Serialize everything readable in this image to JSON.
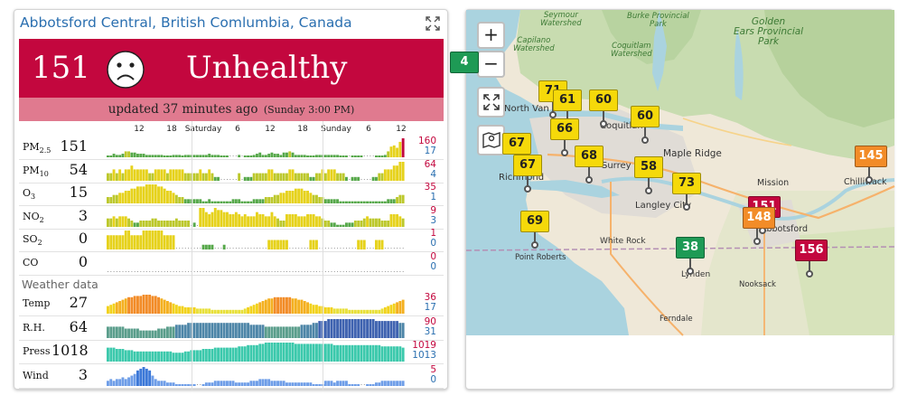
{
  "station": {
    "title": "Abbotsford Central, British Comlumbia, Canada",
    "aqi": "151",
    "level": "Unhealthy",
    "updated": "updated 37 minutes ago",
    "updated_day": "(Sunday 3:00 PM)",
    "banner_color": "#c3073e"
  },
  "time_axis": [
    "12",
    "18",
    "Saturday",
    "6",
    "12",
    "18",
    "Sunday",
    "6",
    "12"
  ],
  "pollutants": [
    {
      "id": "pm25",
      "label": "PM",
      "sub": "2.5",
      "value": "151",
      "max": "160",
      "min": "17",
      "bars": [
        1,
        1,
        3,
        2,
        2,
        3,
        5,
        5,
        4,
        4,
        3,
        3,
        3,
        2,
        2,
        2,
        2,
        2,
        2,
        1,
        1,
        1,
        2,
        2,
        2,
        1,
        2,
        2,
        2,
        2,
        2,
        2,
        2,
        2,
        3,
        2,
        2,
        2,
        1,
        1,
        1,
        0,
        0,
        0,
        2,
        0,
        1,
        1,
        1,
        2,
        3,
        4,
        2,
        2,
        3,
        4,
        3,
        3,
        2,
        4,
        4,
        5,
        4,
        2,
        2,
        2,
        2,
        1,
        1,
        1,
        2,
        2,
        2,
        2,
        2,
        2,
        2,
        2,
        1,
        1,
        1,
        0,
        1,
        1,
        1,
        1,
        0,
        0,
        0,
        0,
        1,
        1,
        1,
        2,
        5,
        9,
        10,
        8,
        13,
        16
      ]
    },
    {
      "id": "pm10",
      "label": "PM",
      "sub": "10",
      "value": "54",
      "max": "64",
      "min": "4",
      "bars": [
        2,
        2,
        3,
        2,
        3,
        2,
        3,
        3,
        4,
        3,
        3,
        3,
        3,
        3,
        2,
        2,
        3,
        3,
        3,
        3,
        2,
        3,
        3,
        3,
        3,
        3,
        2,
        2,
        2,
        2,
        2,
        3,
        2,
        2,
        3,
        2,
        1,
        1,
        0,
        0,
        0,
        0,
        0,
        0,
        2,
        0,
        1,
        1,
        1,
        2,
        2,
        2,
        2,
        2,
        3,
        3,
        2,
        2,
        2,
        2,
        2,
        3,
        3,
        2,
        2,
        2,
        2,
        2,
        1,
        1,
        2,
        2,
        3,
        2,
        3,
        3,
        3,
        2,
        2,
        2,
        1,
        0,
        1,
        1,
        1,
        0,
        0,
        0,
        0,
        1,
        1,
        2,
        2,
        3,
        3,
        3,
        4,
        4,
        5,
        5
      ]
    },
    {
      "id": "o3",
      "label": "O",
      "sub": "3",
      "value": "15",
      "max": "35",
      "min": "1",
      "bars": [
        3,
        3,
        4,
        4,
        5,
        5,
        6,
        6,
        7,
        7,
        8,
        8,
        8,
        9,
        9,
        9,
        9,
        8,
        8,
        7,
        6,
        6,
        5,
        4,
        3,
        3,
        2,
        2,
        2,
        2,
        2,
        2,
        1,
        1,
        2,
        1,
        1,
        1,
        1,
        1,
        1,
        1,
        2,
        2,
        2,
        1,
        1,
        1,
        1,
        2,
        2,
        2,
        2,
        3,
        3,
        3,
        4,
        4,
        5,
        5,
        6,
        6,
        6,
        7,
        7,
        7,
        6,
        6,
        5,
        4,
        4,
        3,
        3,
        2,
        2,
        2,
        2,
        2,
        1,
        1,
        1,
        1,
        1,
        1,
        1,
        1,
        1,
        1,
        1,
        1,
        1,
        1,
        1,
        1,
        2,
        2,
        2,
        3,
        4,
        4
      ]
    },
    {
      "id": "no2",
      "label": "NO",
      "sub": "2",
      "value": "3",
      "max": "9",
      "min": "3",
      "bars": [
        4,
        4,
        5,
        4,
        5,
        5,
        5,
        4,
        3,
        2,
        2,
        3,
        3,
        3,
        3,
        4,
        4,
        3,
        3,
        3,
        3,
        3,
        3,
        4,
        3,
        3,
        3,
        3,
        0,
        2,
        0,
        9,
        9,
        7,
        6,
        7,
        9,
        8,
        8,
        7,
        7,
        6,
        6,
        7,
        6,
        5,
        6,
        5,
        5,
        5,
        7,
        6,
        6,
        5,
        5,
        7,
        5,
        4,
        3,
        3,
        6,
        6,
        6,
        6,
        5,
        5,
        5,
        6,
        6,
        6,
        5,
        5,
        4,
        3,
        3,
        2,
        2,
        1,
        1,
        1,
        2,
        2,
        2,
        3,
        3,
        3,
        4,
        5,
        4,
        4,
        4,
        4,
        3,
        3,
        3,
        6,
        6,
        6,
        5,
        4
      ]
    },
    {
      "id": "so2",
      "label": "SO",
      "sub": "2",
      "value": "0",
      "max": "1",
      "min": "0",
      "bars": [
        3,
        3,
        3,
        3,
        3,
        3,
        4,
        4,
        3,
        3,
        3,
        3,
        4,
        4,
        4,
        4,
        4,
        4,
        4,
        3,
        3,
        3,
        3,
        0,
        0,
        0,
        0,
        0,
        0,
        0,
        0,
        0,
        1,
        1,
        1,
        1,
        0,
        0,
        0,
        1,
        0,
        0,
        0,
        0,
        0,
        0,
        0,
        0,
        0,
        0,
        0,
        0,
        0,
        0,
        2,
        2,
        2,
        2,
        2,
        2,
        2,
        0,
        0,
        0,
        0,
        0,
        0,
        0,
        2,
        2,
        2,
        0,
        0,
        0,
        0,
        0,
        0,
        0,
        0,
        0,
        0,
        0,
        0,
        0,
        2,
        2,
        2,
        0,
        0,
        0,
        2,
        2,
        2,
        0,
        0,
        0,
        0,
        0,
        0,
        0
      ]
    },
    {
      "id": "co",
      "label": "CO",
      "sub": "",
      "value": "0",
      "max": "0",
      "min": "0",
      "bars": [
        0,
        0,
        0,
        0,
        0,
        0,
        0,
        0,
        0,
        0,
        0,
        0,
        0,
        0,
        0,
        0,
        0,
        0,
        0,
        0,
        0,
        0,
        0,
        0,
        0,
        0,
        0,
        0,
        0,
        0,
        0,
        0,
        0,
        0,
        0,
        0,
        0,
        0,
        0,
        0,
        0,
        0,
        0,
        0,
        0,
        0,
        0,
        0,
        0,
        0,
        0,
        0,
        0,
        0,
        0,
        0,
        0,
        0,
        0,
        0,
        0,
        0,
        0,
        0,
        0,
        0,
        0,
        0,
        0,
        0,
        0,
        0,
        0,
        0,
        0,
        0,
        0,
        0,
        0,
        0,
        0,
        0,
        0,
        0,
        0,
        0,
        0,
        0,
        0,
        0,
        0,
        0,
        0,
        0,
        0,
        0,
        0,
        0,
        0,
        0
      ]
    }
  ],
  "weather_heading": "Weather data",
  "weather": [
    {
      "id": "temp",
      "label": "Temp",
      "value": "27",
      "max": "36",
      "min": "17",
      "palette": "temp",
      "bars": [
        6,
        7,
        8,
        9,
        10,
        11,
        12,
        13,
        13,
        14,
        14,
        14,
        15,
        15,
        15,
        14,
        14,
        13,
        12,
        11,
        10,
        9,
        8,
        7,
        6,
        6,
        5,
        5,
        5,
        5,
        4,
        4,
        4,
        4,
        4,
        3,
        3,
        3,
        3,
        3,
        3,
        3,
        3,
        3,
        3,
        3,
        4,
        5,
        6,
        7,
        8,
        9,
        10,
        11,
        12,
        12,
        13,
        13,
        13,
        13,
        13,
        13,
        12,
        12,
        11,
        11,
        10,
        9,
        8,
        7,
        7,
        6,
        6,
        5,
        5,
        5,
        4,
        4,
        4,
        4,
        4,
        3,
        3,
        3,
        3,
        3,
        3,
        3,
        3,
        3,
        3,
        3,
        4,
        5,
        6,
        7,
        8,
        9,
        10,
        11
      ]
    },
    {
      "id": "rh",
      "label": "R.H.",
      "value": "64",
      "max": "90",
      "min": "31",
      "palette": "rh",
      "bars": [
        6,
        6,
        6,
        6,
        6,
        6,
        5,
        5,
        5,
        5,
        5,
        4,
        4,
        4,
        4,
        4,
        4,
        5,
        5,
        5,
        6,
        6,
        6,
        7,
        7,
        7,
        7,
        8,
        8,
        8,
        8,
        8,
        8,
        8,
        8,
        8,
        8,
        8,
        8,
        8,
        8,
        8,
        8,
        8,
        8,
        8,
        8,
        8,
        7,
        7,
        7,
        7,
        7,
        6,
        6,
        6,
        6,
        6,
        6,
        6,
        6,
        6,
        6,
        6,
        6,
        7,
        7,
        7,
        7,
        8,
        8,
        9,
        9,
        9,
        10,
        10,
        10,
        10,
        10,
        10,
        10,
        10,
        10,
        10,
        10,
        10,
        10,
        10,
        10,
        10,
        9,
        9,
        9,
        9,
        9,
        9,
        9,
        9,
        8,
        8
      ]
    },
    {
      "id": "press",
      "label": "Press",
      "value": "1018",
      "max": "1019",
      "min": "1013",
      "palette": "press",
      "bars": [
        11,
        11,
        11,
        10,
        10,
        10,
        9,
        9,
        9,
        8,
        8,
        8,
        8,
        8,
        8,
        8,
        8,
        8,
        8,
        8,
        8,
        8,
        7,
        7,
        7,
        7,
        8,
        8,
        9,
        9,
        9,
        9,
        10,
        10,
        10,
        10,
        11,
        11,
        11,
        11,
        11,
        11,
        11,
        11,
        12,
        12,
        12,
        13,
        13,
        13,
        13,
        14,
        14,
        15,
        15,
        15,
        15,
        15,
        15,
        15,
        15,
        15,
        15,
        14,
        14,
        14,
        14,
        14,
        14,
        14,
        14,
        14,
        14,
        14,
        14,
        14,
        13,
        13,
        13,
        13,
        13,
        13,
        13,
        13,
        13,
        13,
        13,
        13,
        13,
        13,
        13,
        13,
        12,
        12,
        12,
        12,
        12,
        12,
        12,
        11
      ]
    },
    {
      "id": "wind",
      "label": "Wind",
      "value": "3",
      "max": "5",
      "min": "0",
      "palette": "wind",
      "bars": [
        3,
        4,
        3,
        4,
        4,
        5,
        4,
        5,
        6,
        7,
        9,
        10,
        11,
        10,
        9,
        6,
        4,
        3,
        3,
        3,
        2,
        2,
        2,
        1,
        1,
        1,
        1,
        1,
        1,
        1,
        0,
        0,
        1,
        2,
        2,
        2,
        3,
        3,
        3,
        3,
        3,
        3,
        3,
        2,
        2,
        2,
        2,
        2,
        3,
        3,
        3,
        4,
        4,
        4,
        4,
        3,
        3,
        3,
        3,
        3,
        2,
        2,
        2,
        2,
        2,
        2,
        2,
        2,
        2,
        1,
        1,
        1,
        1,
        3,
        3,
        3,
        2,
        3,
        3,
        3,
        3,
        1,
        1,
        1,
        1,
        0,
        0,
        1,
        1,
        1,
        2,
        2,
        3,
        3,
        3,
        3,
        3,
        3,
        3,
        3
      ]
    }
  ],
  "map": {
    "zoom_in": "+",
    "zoom_out": "−",
    "edge_marker": "4",
    "places": [
      {
        "name": "Seymour\nWatershed",
        "kind": "park"
      },
      {
        "name": "Burke Provincial\nPark",
        "kind": "park"
      },
      {
        "name": "Golden\nEars Provincial\nPark",
        "kind": "park"
      },
      {
        "name": "Capilano\nWatershed",
        "kind": "park"
      },
      {
        "name": "Coquitlam\nWatershed",
        "kind": "park"
      },
      {
        "name": "North Van",
        "kind": "city"
      },
      {
        "name": "Coquitlam",
        "kind": "city"
      },
      {
        "name": "Maple Ridge",
        "kind": "city"
      },
      {
        "name": "Richmond",
        "kind": "city"
      },
      {
        "name": "Surrey",
        "kind": "city"
      },
      {
        "name": "Langley City",
        "kind": "city"
      },
      {
        "name": "Mission",
        "kind": "city"
      },
      {
        "name": "Chilliwack",
        "kind": "city"
      },
      {
        "name": "Abbotsford",
        "kind": "city"
      },
      {
        "name": "White Rock",
        "kind": "city"
      },
      {
        "name": "Point Roberts",
        "kind": "city"
      },
      {
        "name": "Lynden",
        "kind": "city"
      },
      {
        "name": "Nooksack",
        "kind": "city"
      },
      {
        "name": "Ferndale",
        "kind": "city"
      }
    ],
    "stations": [
      {
        "value": "71",
        "color": "#f5d90a"
      },
      {
        "value": "61",
        "color": "#f5d90a"
      },
      {
        "value": "60",
        "color": "#f5d90a"
      },
      {
        "value": "60",
        "color": "#f5d90a"
      },
      {
        "value": "66",
        "color": "#f5d90a"
      },
      {
        "value": "67",
        "color": "#f5d90a"
      },
      {
        "value": "67",
        "color": "#f5d90a"
      },
      {
        "value": "68",
        "color": "#f5d90a"
      },
      {
        "value": "58",
        "color": "#f5d90a"
      },
      {
        "value": "73",
        "color": "#f5d90a"
      },
      {
        "value": "69",
        "color": "#f5d90a"
      },
      {
        "value": "38",
        "color": "#1e9a55"
      },
      {
        "value": "151",
        "color": "#c3073e"
      },
      {
        "value": "148",
        "color": "#f28c28"
      },
      {
        "value": "156",
        "color": "#c3073e"
      },
      {
        "value": "145",
        "color": "#f28c28"
      }
    ]
  }
}
